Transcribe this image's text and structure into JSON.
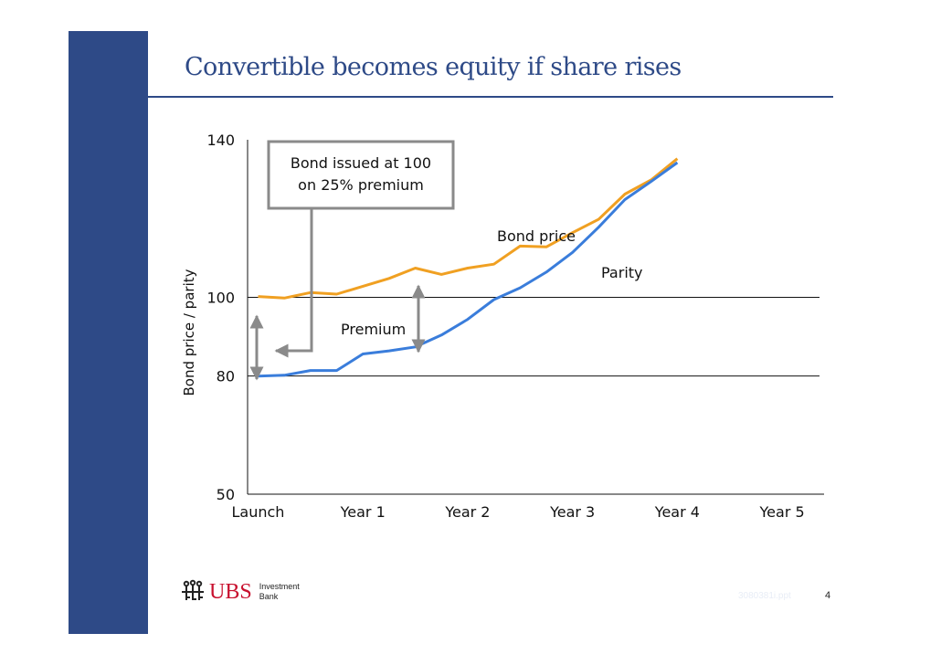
{
  "slide": {
    "title": "Convertible becomes equity if share rises",
    "page_number": "4",
    "file_ref": "3080381i.ppt"
  },
  "branding": {
    "logo_text": "UBS",
    "logo_sub_line1": "Investment",
    "logo_sub_line2": "Bank",
    "accent_color": "#2e4a87",
    "logo_color": "#c8102e"
  },
  "chart_data": {
    "type": "line",
    "title": "",
    "xlabel": "",
    "ylabel": "Bond price / parity",
    "categories": [
      "Launch",
      "Year 1",
      "Year 2",
      "Year 3",
      "Year 4",
      "Year 5"
    ],
    "yticks": [
      50,
      80,
      100,
      140
    ],
    "gridlines": [
      80,
      100
    ],
    "ylim": [
      50,
      140
    ],
    "xlim": [
      -0.1,
      5.4
    ],
    "series": [
      {
        "name": "Bond price",
        "color": "#f0a022",
        "x": [
          0,
          0.25,
          0.5,
          0.75,
          1.0,
          1.25,
          1.5,
          1.75,
          2.0,
          2.25,
          2.5,
          2.75,
          3.0,
          3.25,
          3.5,
          3.75,
          4.0
        ],
        "y": [
          100.2,
          99.8,
          101.2,
          100.8,
          102.8,
          104.8,
          107.4,
          105.8,
          107.4,
          108.4,
          113.0,
          112.8,
          116.4,
          119.8,
          126.2,
          129.8,
          135.2
        ]
      },
      {
        "name": "Parity",
        "color": "#3a7ddb",
        "x": [
          0,
          0.25,
          0.5,
          0.75,
          1.0,
          1.25,
          1.5,
          1.75,
          2.0,
          2.25,
          2.5,
          2.75,
          3.0,
          3.25,
          3.5,
          3.75,
          4.0
        ],
        "y": [
          80.0,
          80.2,
          81.4,
          81.4,
          85.6,
          86.4,
          87.4,
          90.4,
          94.4,
          99.4,
          102.4,
          106.4,
          111.4,
          117.8,
          124.8,
          129.4,
          134.2
        ]
      }
    ],
    "annotations": {
      "bond_price_label": "Bond price",
      "parity_label": "Parity",
      "premium_label": "Premium",
      "callout_line1": "Bond issued at 100",
      "callout_line2": "on 25% premium"
    }
  }
}
